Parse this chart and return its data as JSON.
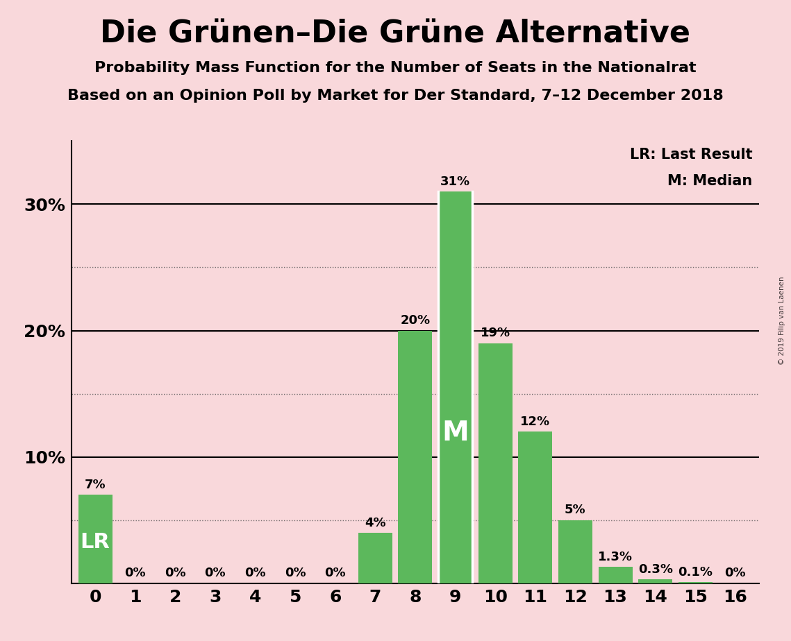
{
  "title": "Die Grünen–Die Grüne Alternative",
  "subtitle1": "Probability Mass Function for the Number of Seats in the Nationalrat",
  "subtitle2": "Based on an Opinion Poll by Market for Der Standard, 7–12 December 2018",
  "watermark": "© 2019 Filip van Laenen",
  "categories": [
    0,
    1,
    2,
    3,
    4,
    5,
    6,
    7,
    8,
    9,
    10,
    11,
    12,
    13,
    14,
    15,
    16
  ],
  "values": [
    7,
    0,
    0,
    0,
    0,
    0,
    0,
    4,
    20,
    31,
    19,
    12,
    5,
    1.3,
    0.3,
    0.1,
    0
  ],
  "labels": [
    "7%",
    "0%",
    "0%",
    "0%",
    "0%",
    "0%",
    "0%",
    "4%",
    "20%",
    "31%",
    "19%",
    "12%",
    "5%",
    "1.3%",
    "0.3%",
    "0.1%",
    "0%"
  ],
  "bar_color": "#5cb85c",
  "background_color": "#f9d8db",
  "lr_bar_index": 0,
  "median_bar_index": 9,
  "lr_label": "LR",
  "median_label": "M",
  "legend_lr": "LR: Last Result",
  "legend_m": "M: Median",
  "ylim": [
    0,
    35
  ],
  "solid_grid": [
    10,
    20,
    30
  ],
  "dotted_grid": [
    5,
    15,
    25
  ],
  "title_fontsize": 32,
  "subtitle_fontsize": 16,
  "axis_fontsize": 18,
  "bar_label_fontsize": 13,
  "legend_fontsize": 15,
  "lr_fontsize": 22,
  "median_fontsize": 28
}
